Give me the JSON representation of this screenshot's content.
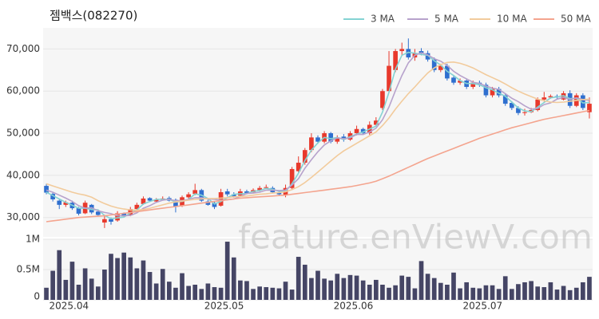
{
  "chart_data": {
    "type": "candlestick",
    "title": "젬백스(082270)",
    "watermark": "feature.enViewV.com",
    "categories": [
      null,
      null,
      null,
      "2025.04",
      null,
      null,
      null,
      null,
      null,
      null,
      null,
      null,
      null,
      null,
      null,
      null,
      null,
      null,
      null,
      null,
      null,
      null,
      null,
      null,
      null,
      null,
      null,
      "2025.05",
      null,
      null,
      null,
      null,
      null,
      null,
      null,
      null,
      null,
      null,
      null,
      null,
      null,
      null,
      null,
      null,
      null,
      null,
      null,
      "2025.06",
      null,
      null,
      null,
      null,
      null,
      null,
      null,
      null,
      null,
      null,
      null,
      null,
      null,
      null,
      null,
      null,
      null,
      null,
      null,
      "2025.07",
      null,
      null,
      null,
      null,
      null,
      null,
      null,
      null,
      null,
      null,
      null,
      null,
      null,
      null,
      null,
      null,
      null
    ],
    "open": [
      37500,
      35600,
      34000,
      33000,
      33500,
      32200,
      31000,
      33000,
      31400,
      28800,
      29600,
      29300,
      31000,
      30500,
      32000,
      33200,
      34600,
      33800,
      34200,
      34600,
      34200,
      32800,
      34800,
      35600,
      36500,
      33800,
      33500,
      32800,
      36200,
      35500,
      35200,
      36200,
      36000,
      36500,
      37000,
      37000,
      36000,
      35400,
      37000,
      41000,
      43000,
      46000,
      49000,
      48000,
      50000,
      48000,
      49200,
      48500,
      50000,
      51000,
      50000,
      52000,
      56000,
      60000,
      65000,
      69500,
      70000,
      68000,
      69500,
      69000,
      67500,
      65000,
      66000,
      63200,
      62000,
      62500,
      61000,
      62000,
      61500,
      59000,
      60500,
      59000,
      57200,
      56000,
      54800,
      55000,
      55500,
      58000,
      58500,
      58800,
      58000,
      59500,
      56500,
      59000,
      55000
    ],
    "high": [
      38000,
      35900,
      34200,
      34000,
      34000,
      32500,
      34000,
      33200,
      31800,
      30500,
      30000,
      31500,
      31200,
      32500,
      33500,
      35000,
      34800,
      34600,
      35000,
      35000,
      34500,
      35200,
      36000,
      38000,
      36800,
      34200,
      33800,
      36800,
      36800,
      36000,
      36800,
      36600,
      36900,
      37500,
      37800,
      37400,
      36400,
      37800,
      42000,
      44500,
      46500,
      50000,
      49500,
      50500,
      50300,
      49500,
      49800,
      50500,
      51800,
      51300,
      52800,
      53800,
      60500,
      69500,
      70000,
      71500,
      72500,
      70000,
      70200,
      69600,
      68000,
      66500,
      66500,
      63800,
      63000,
      63000,
      62500,
      62500,
      62000,
      61000,
      61000,
      59500,
      57600,
      56400,
      55800,
      56000,
      58500,
      59800,
      59200,
      59200,
      60000,
      60200,
      59500,
      59500,
      58500
    ],
    "low": [
      35500,
      33800,
      32000,
      32500,
      31800,
      30500,
      30800,
      30800,
      30200,
      27500,
      28300,
      29000,
      30200,
      30300,
      31700,
      33000,
      33700,
      33500,
      34000,
      33800,
      31200,
      32500,
      34500,
      35300,
      33700,
      32800,
      32000,
      32600,
      35000,
      34700,
      35000,
      35500,
      35700,
      36200,
      36800,
      35700,
      35200,
      34800,
      36500,
      40500,
      42500,
      45500,
      47500,
      47600,
      47600,
      47500,
      48000,
      48200,
      49500,
      49600,
      49600,
      51600,
      55500,
      59500,
      64500,
      68500,
      67500,
      67200,
      68500,
      67000,
      64500,
      64500,
      62500,
      61500,
      61500,
      60500,
      60500,
      61000,
      58500,
      58500,
      58500,
      56500,
      55500,
      54300,
      54200,
      54800,
      55200,
      57500,
      58200,
      58000,
      57800,
      56000,
      56200,
      55500,
      53500
    ],
    "close": [
      35900,
      34300,
      33000,
      33600,
      32200,
      30900,
      33500,
      31200,
      30600,
      29600,
      29000,
      31000,
      30400,
      32000,
      33000,
      34500,
      34000,
      34300,
      34500,
      34000,
      32500,
      34800,
      35500,
      36500,
      34000,
      33000,
      32500,
      36000,
      35500,
      35000,
      36200,
      35800,
      36500,
      37000,
      37200,
      36000,
      35500,
      37000,
      41500,
      43000,
      46000,
      49000,
      48000,
      50000,
      48000,
      49000,
      48500,
      50000,
      51000,
      50000,
      52000,
      53000,
      60000,
      66000,
      69500,
      70000,
      68000,
      69000,
      69000,
      67500,
      65000,
      66000,
      63000,
      62000,
      62500,
      61000,
      62000,
      61500,
      59000,
      60500,
      59000,
      57000,
      56000,
      54800,
      55000,
      55500,
      58000,
      58500,
      58800,
      58500,
      59500,
      56500,
      59000,
      56000,
      57000
    ],
    "up_color": "#e8392c",
    "down_color": "#2f6fcf",
    "series": [
      {
        "name": "3 MA",
        "color": "#84d3d3",
        "values": [
          36000,
          35200,
          34400,
          33600,
          32900,
          32200,
          32200,
          31900,
          31800,
          30500,
          29700,
          29900,
          30100,
          31100,
          31800,
          33200,
          33800,
          34300,
          34300,
          34300,
          33700,
          33800,
          34300,
          35600,
          35300,
          34500,
          33200,
          33800,
          34700,
          35500,
          35600,
          35700,
          36200,
          36400,
          36900,
          36700,
          36200,
          36200,
          38000,
          40500,
          43500,
          46000,
          47700,
          49000,
          48700,
          49000,
          48500,
          49200,
          49800,
          50300,
          51000,
          51700,
          55000,
          59700,
          65200,
          68500,
          69200,
          69000,
          68700,
          68500,
          67200,
          66200,
          64700,
          63700,
          62500,
          61800,
          61800,
          61500,
          60800,
          60300,
          59500,
          58800,
          57400,
          56000,
          55300,
          55100,
          56200,
          57300,
          58400,
          58600,
          58900,
          58200,
          58300,
          57200,
          57300
        ]
      },
      {
        "name": "5 MA",
        "color": "#b7a2cc",
        "values": [
          36500,
          36000,
          35300,
          34600,
          33800,
          32800,
          32200,
          32300,
          31600,
          31200,
          30900,
          30400,
          30400,
          30500,
          31100,
          32200,
          32800,
          33600,
          34100,
          34300,
          34000,
          34000,
          34300,
          34700,
          34700,
          34400,
          34300,
          34100,
          34200,
          34400,
          35000,
          35700,
          35800,
          36000,
          36500,
          36500,
          36400,
          36500,
          37700,
          39200,
          41700,
          43700,
          45600,
          47200,
          48200,
          48900,
          48700,
          48900,
          49700,
          49700,
          50300,
          51200,
          53200,
          56200,
          60100,
          63700,
          66700,
          68500,
          69100,
          68600,
          67700,
          67100,
          66100,
          64700,
          63700,
          62900,
          62100,
          61800,
          61200,
          60700,
          60400,
          59400,
          58300,
          57500,
          56500,
          55700,
          55900,
          56800,
          57200,
          58100,
          58500,
          58000,
          58400,
          58000,
          57800
        ]
      },
      {
        "name": "10 MA",
        "color": "#f2cb9c",
        "values": [
          38000,
          37500,
          37000,
          36500,
          36000,
          35600,
          35300,
          34800,
          34000,
          33300,
          32700,
          32300,
          32000,
          31800,
          31700,
          31900,
          32200,
          32600,
          33000,
          33400,
          33700,
          33900,
          34100,
          34300,
          34400,
          34500,
          34500,
          34600,
          34700,
          34900,
          35000,
          35100,
          35300,
          35500,
          35600,
          35800,
          35900,
          36100,
          36600,
          37300,
          38300,
          39500,
          40800,
          42100,
          43400,
          44700,
          45800,
          46700,
          47600,
          48500,
          49400,
          50300,
          51800,
          53600,
          55700,
          57600,
          59400,
          61000,
          62700,
          64300,
          65500,
          66300,
          66800,
          66900,
          66600,
          66100,
          65500,
          64700,
          63900,
          63200,
          62500,
          61700,
          60800,
          60000,
          59300,
          58700,
          58100,
          57700,
          57400,
          57300,
          57400,
          57600,
          57800,
          58000,
          58100
        ]
      },
      {
        "name": "50 MA",
        "color": "#f4a48e",
        "values": [
          29000,
          29200,
          29400,
          29600,
          29800,
          30000,
          30100,
          30200,
          30300,
          30400,
          30600,
          30800,
          31000,
          31200,
          31400,
          31600,
          31800,
          32000,
          32200,
          32400,
          32600,
          32800,
          33000,
          33200,
          33400,
          33600,
          33800,
          34000,
          34200,
          34400,
          34600,
          34700,
          34800,
          34900,
          35000,
          35100,
          35200,
          35300,
          35500,
          35700,
          35900,
          36100,
          36300,
          36500,
          36700,
          36900,
          37100,
          37300,
          37600,
          37900,
          38200,
          38600,
          39200,
          39800,
          40500,
          41200,
          41900,
          42600,
          43300,
          44000,
          44600,
          45200,
          45800,
          46400,
          47000,
          47600,
          48200,
          48800,
          49300,
          49800,
          50300,
          50800,
          51300,
          51700,
          52100,
          52500,
          52900,
          53300,
          53600,
          53900,
          54200,
          54500,
          54800,
          55100,
          55400
        ]
      }
    ],
    "ylim": [
      25400,
      75000
    ],
    "yticks": [
      {
        "value": 30000,
        "label": "30,000"
      },
      {
        "value": 40000,
        "label": "40,000"
      },
      {
        "value": 50000,
        "label": "50,000"
      },
      {
        "value": 60000,
        "label": "60,000"
      },
      {
        "value": 70000,
        "label": "70,000"
      }
    ],
    "grid": true,
    "volume": {
      "color": "#454565",
      "values": [
        200000,
        480000,
        820000,
        330000,
        630000,
        250000,
        520000,
        350000,
        220000,
        500000,
        760000,
        690000,
        780000,
        700000,
        520000,
        650000,
        460000,
        270000,
        510000,
        300000,
        200000,
        440000,
        230000,
        250000,
        180000,
        270000,
        210000,
        200000,
        960000,
        700000,
        320000,
        310000,
        180000,
        220000,
        210000,
        200000,
        190000,
        300000,
        170000,
        710000,
        580000,
        360000,
        480000,
        350000,
        320000,
        430000,
        360000,
        410000,
        400000,
        320000,
        250000,
        330000,
        250000,
        200000,
        240000,
        400000,
        380000,
        190000,
        640000,
        430000,
        360000,
        280000,
        250000,
        450000,
        190000,
        290000,
        200000,
        190000,
        240000,
        240000,
        180000,
        390000,
        180000,
        260000,
        290000,
        310000,
        220000,
        210000,
        290000,
        170000,
        230000,
        160000,
        200000,
        290000,
        380000
      ],
      "ylim": [
        0,
        1000000
      ],
      "yticks": [
        0,
        {
          "value": 500000,
          "label": "0.5M"
        },
        {
          "value": 1000000,
          "label": "1M"
        }
      ]
    }
  }
}
